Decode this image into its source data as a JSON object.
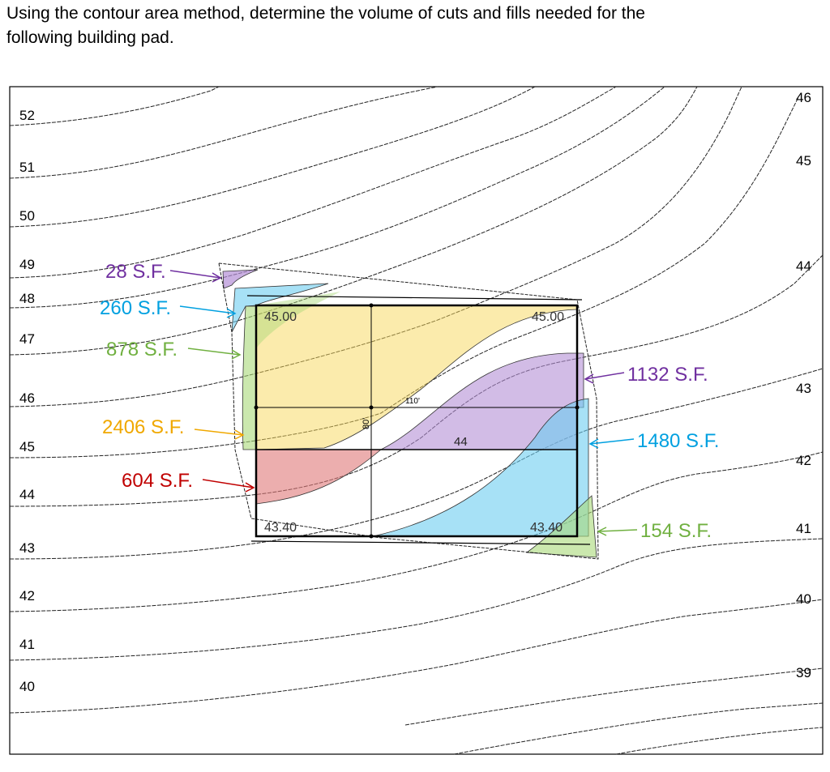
{
  "question": {
    "line1": "Using the contour area method, determine the volume of cuts and fills needed for the",
    "line2": "following building pad."
  },
  "left_elevations": [
    "52",
    "51",
    "50",
    "49",
    "48",
    "47",
    "46",
    "45",
    "44",
    "43",
    "42",
    "41",
    "40"
  ],
  "right_elevations": [
    "46",
    "45",
    "44",
    "43",
    "42",
    "41",
    "40",
    "39"
  ],
  "pad": {
    "corner_tl": "45.00",
    "corner_tr": "45.00",
    "corner_bl": "43.40",
    "corner_br": "43.40",
    "width_dim": "110'",
    "height_dim": "80'",
    "mid_contour": "44"
  },
  "areas": [
    {
      "text": "28 S.F.",
      "color": "#7030a0"
    },
    {
      "text": "260 S.F.",
      "color": "#00a0e0"
    },
    {
      "text": "878 S.F.",
      "color": "#70b040"
    },
    {
      "text": "2406 S.F.",
      "color": "#f0a800"
    },
    {
      "text": "604 S.F.",
      "color": "#c00000"
    },
    {
      "text": "1132 S.F.",
      "color": "#7030a0"
    },
    {
      "text": "1480 S.F.",
      "color": "#00a0e0"
    },
    {
      "text": "154 S.F.",
      "color": "#70b040"
    }
  ]
}
